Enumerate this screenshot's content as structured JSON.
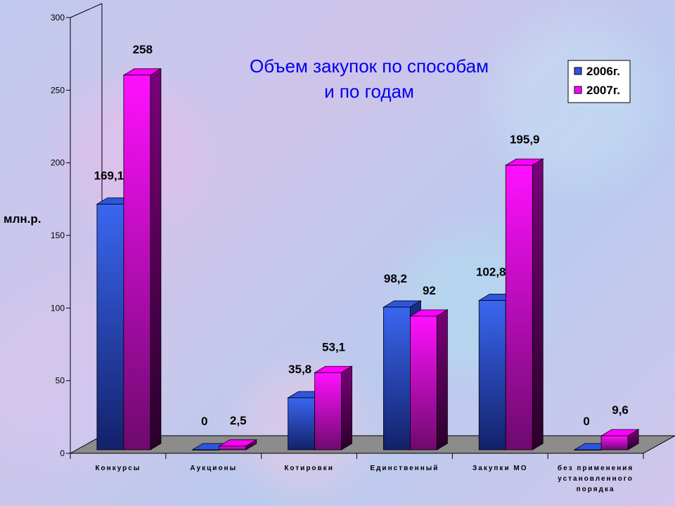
{
  "chart_data": {
    "type": "bar",
    "title": "Объем закупок по способам и по годам",
    "title_lines": [
      "Объем закупок по способам",
      "и по годам"
    ],
    "ylabel": "млн.р.",
    "xlabel": "",
    "ylim": [
      0,
      300
    ],
    "yticks": [
      0,
      50,
      100,
      150,
      200,
      250,
      300
    ],
    "grid": false,
    "legend_position": "top-right",
    "categories": [
      [
        "Конкурсы"
      ],
      [
        "Аукционы"
      ],
      [
        "Котировки"
      ],
      [
        "Единственный"
      ],
      [
        "Закупки МО"
      ],
      [
        "без применения",
        "установленного",
        "порядка"
      ]
    ],
    "series": [
      {
        "name": "2006г.",
        "color": "#2f55dd",
        "values": [
          169.1,
          0,
          35.8,
          98.2,
          102.8,
          0
        ],
        "labels": [
          "169,1",
          "0",
          "35,8",
          "98,2",
          "102,8",
          "0"
        ]
      },
      {
        "name": "2007г.",
        "color": "#ff00ff",
        "values": [
          258,
          2.5,
          53.1,
          92,
          195.9,
          9.6
        ],
        "labels": [
          "258",
          "2,5",
          "53,1",
          "92",
          "195,9",
          "9,6"
        ]
      }
    ]
  }
}
